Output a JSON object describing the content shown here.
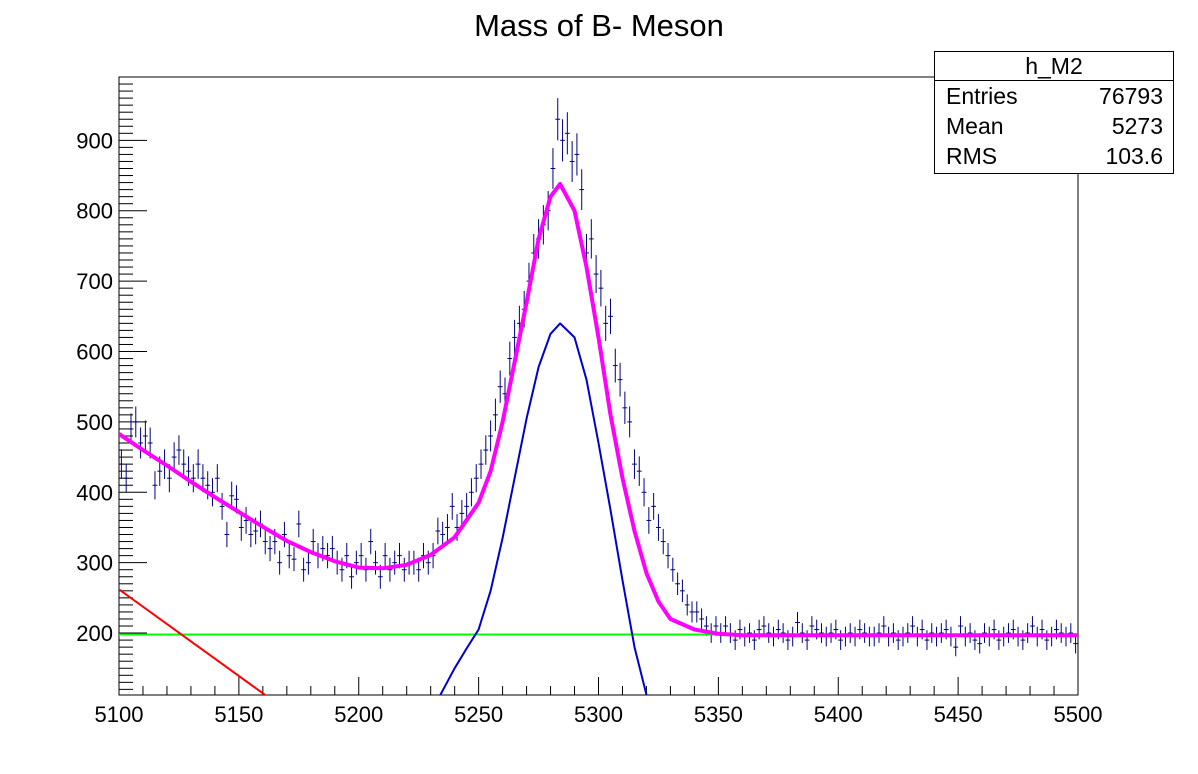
{
  "chart_data": {
    "type": "scatter",
    "title": "Mass of B- Meson",
    "xlabel": "",
    "ylabel": "",
    "xlim": [
      5100,
      5500
    ],
    "ylim": [
      112,
      990
    ],
    "x_ticks": [
      5100,
      5150,
      5200,
      5250,
      5300,
      5350,
      5400,
      5450,
      5500
    ],
    "y_ticks": [
      200,
      300,
      400,
      500,
      600,
      700,
      800,
      900
    ],
    "stats": {
      "name": "h_M2",
      "rows": [
        {
          "label": "Entries",
          "value": "76793"
        },
        {
          "label": "Mean",
          "value": "5273"
        },
        {
          "label": "RMS",
          "value": "103.6"
        }
      ]
    },
    "histogram": {
      "name": "h_M2",
      "color": "#000080",
      "bin_width": 2,
      "x": [
        5101,
        5103,
        5105,
        5107,
        5109,
        5111,
        5113,
        5115,
        5117,
        5119,
        5121,
        5123,
        5125,
        5127,
        5129,
        5131,
        5133,
        5135,
        5137,
        5139,
        5141,
        5143,
        5145,
        5147,
        5149,
        5151,
        5153,
        5155,
        5157,
        5159,
        5161,
        5163,
        5165,
        5167,
        5169,
        5171,
        5173,
        5175,
        5177,
        5179,
        5181,
        5183,
        5185,
        5187,
        5189,
        5191,
        5193,
        5195,
        5197,
        5199,
        5201,
        5203,
        5205,
        5207,
        5209,
        5211,
        5213,
        5215,
        5217,
        5219,
        5221,
        5223,
        5225,
        5227,
        5229,
        5231,
        5233,
        5235,
        5237,
        5239,
        5241,
        5243,
        5245,
        5247,
        5249,
        5251,
        5253,
        5255,
        5257,
        5259,
        5261,
        5263,
        5265,
        5267,
        5269,
        5271,
        5273,
        5275,
        5277,
        5279,
        5281,
        5283,
        5285,
        5287,
        5289,
        5291,
        5293,
        5295,
        5297,
        5299,
        5301,
        5303,
        5305,
        5307,
        5309,
        5311,
        5313,
        5315,
        5317,
        5319,
        5321,
        5323,
        5325,
        5327,
        5329,
        5331,
        5333,
        5335,
        5337,
        5339,
        5341,
        5343,
        5345,
        5347,
        5349,
        5351,
        5353,
        5355,
        5357,
        5359,
        5361,
        5363,
        5365,
        5367,
        5369,
        5371,
        5373,
        5375,
        5377,
        5379,
        5381,
        5383,
        5385,
        5387,
        5389,
        5391,
        5393,
        5395,
        5397,
        5399,
        5401,
        5403,
        5405,
        5407,
        5409,
        5411,
        5413,
        5415,
        5417,
        5419,
        5421,
        5423,
        5425,
        5427,
        5429,
        5431,
        5433,
        5435,
        5437,
        5439,
        5441,
        5443,
        5445,
        5447,
        5449,
        5451,
        5453,
        5455,
        5457,
        5459,
        5461,
        5463,
        5465,
        5467,
        5469,
        5471,
        5473,
        5475,
        5477,
        5479,
        5481,
        5483,
        5485,
        5487,
        5489,
        5491,
        5493,
        5495,
        5497,
        5499
      ],
      "y": [
        440,
        420,
        490,
        500,
        470,
        480,
        470,
        410,
        430,
        440,
        420,
        450,
        460,
        440,
        430,
        420,
        440,
        420,
        410,
        400,
        420,
        380,
        340,
        395,
        390,
        350,
        360,
        340,
        345,
        355,
        330,
        320,
        330,
        300,
        340,
        310,
        305,
        355,
        290,
        300,
        330,
        310,
        320,
        310,
        320,
        300,
        290,
        310,
        280,
        300,
        310,
        290,
        330,
        300,
        280,
        310,
        290,
        300,
        310,
        290,
        300,
        300,
        290,
        310,
        300,
        310,
        345,
        340,
        350,
        380,
        350,
        370,
        380,
        400,
        420,
        440,
        460,
        480,
        510,
        550,
        540,
        590,
        620,
        640,
        660,
        700,
        740,
        760,
        780,
        800,
        860,
        930,
        900,
        910,
        870,
        880,
        830,
        740,
        760,
        710,
        690,
        640,
        650,
        580,
        560,
        520,
        500,
        440,
        430,
        400,
        360,
        380,
        350,
        330,
        310,
        290,
        270,
        260,
        240,
        230,
        230,
        220,
        210,
        200,
        210,
        200,
        210,
        200,
        190,
        205,
        195,
        200,
        190,
        205,
        210,
        200,
        195,
        205,
        200,
        190,
        195,
        215,
        200,
        190,
        210,
        205,
        200,
        195,
        200,
        205,
        190,
        195,
        200,
        195,
        205,
        200,
        195,
        195,
        200,
        210,
        195,
        200,
        190,
        195,
        200,
        210,
        195,
        205,
        190,
        200,
        195,
        200,
        205,
        195,
        180,
        210,
        195,
        200,
        190,
        185,
        200,
        195,
        205,
        190,
        195,
        200,
        205,
        195,
        190,
        200,
        210,
        195,
        205,
        190,
        195,
        205,
        200,
        195,
        200,
        185
      ],
      "errors": [
        21,
        20,
        22,
        22,
        22,
        22,
        22,
        20,
        21,
        21,
        20,
        21,
        21,
        21,
        21,
        20,
        21,
        20,
        20,
        20,
        20,
        19,
        18,
        20,
        20,
        19,
        19,
        18,
        19,
        19,
        18,
        18,
        18,
        17,
        18,
        18,
        17,
        19,
        17,
        17,
        18,
        18,
        18,
        18,
        18,
        17,
        17,
        18,
        17,
        17,
        18,
        17,
        18,
        17,
        17,
        18,
        17,
        17,
        18,
        17,
        17,
        17,
        17,
        18,
        17,
        18,
        19,
        18,
        19,
        19,
        19,
        19,
        19,
        20,
        20,
        21,
        21,
        22,
        23,
        23,
        23,
        24,
        25,
        25,
        26,
        26,
        27,
        28,
        28,
        28,
        29,
        30,
        30,
        30,
        29,
        30,
        29,
        27,
        28,
        27,
        26,
        25,
        25,
        24,
        24,
        23,
        22,
        21,
        21,
        20,
        19,
        19,
        19,
        18,
        18,
        17,
        16,
        16,
        15,
        15,
        15,
        15,
        14,
        14,
        14,
        14,
        14,
        14,
        14,
        14,
        14,
        14,
        14,
        14,
        14,
        14,
        14,
        14,
        14,
        14,
        14,
        15,
        14,
        14,
        14,
        14,
        14,
        14,
        14,
        14,
        14,
        14,
        14,
        14,
        14,
        14,
        14,
        14,
        14,
        14,
        14,
        14,
        14,
        14,
        14,
        14,
        14,
        14,
        14,
        14,
        14,
        14,
        14,
        14,
        13,
        14,
        14,
        14,
        14,
        14,
        14,
        14,
        14,
        14,
        14,
        14,
        14,
        14,
        14,
        14,
        14,
        14,
        14,
        14,
        14,
        14,
        14,
        14,
        14,
        14
      ]
    },
    "curves": [
      {
        "role": "total fit",
        "color": "#ff00ff",
        "width": 4,
        "x": [
          5100,
          5110,
          5120,
          5130,
          5140,
          5150,
          5160,
          5170,
          5180,
          5190,
          5200,
          5210,
          5220,
          5230,
          5240,
          5250,
          5255,
          5260,
          5265,
          5270,
          5275,
          5280,
          5284,
          5290,
          5295,
          5300,
          5305,
          5310,
          5315,
          5320,
          5325,
          5330,
          5340,
          5350,
          5360,
          5380,
          5400,
          5450,
          5500
        ],
        "y": [
          483,
          460,
          438,
          415,
          393,
          372,
          351,
          331,
          315,
          302,
          293,
          292,
          297,
          311,
          336,
          385,
          430,
          500,
          585,
          670,
          760,
          820,
          838,
          800,
          720,
          620,
          510,
          420,
          345,
          285,
          245,
          220,
          205,
          199,
          197,
          197,
          197,
          197,
          197
        ]
      },
      {
        "role": "signal",
        "color": "#0000cc",
        "width": 2,
        "x": [
          5234,
          5240,
          5245,
          5250,
          5255,
          5260,
          5265,
          5270,
          5275,
          5280,
          5284,
          5290,
          5295,
          5300,
          5305,
          5310,
          5315,
          5320
        ],
        "y": [
          112,
          150,
          178,
          205,
          260,
          335,
          420,
          505,
          578,
          625,
          640,
          620,
          560,
          470,
          375,
          275,
          180,
          112
        ]
      },
      {
        "role": "background",
        "color": "#ff0000",
        "width": 2,
        "x": [
          5100,
          5161
        ],
        "y": [
          262,
          112
        ]
      },
      {
        "role": "constant",
        "color": "#00ff00",
        "width": 2,
        "x": [
          5100,
          5500
        ],
        "y": [
          198,
          198
        ]
      }
    ]
  }
}
